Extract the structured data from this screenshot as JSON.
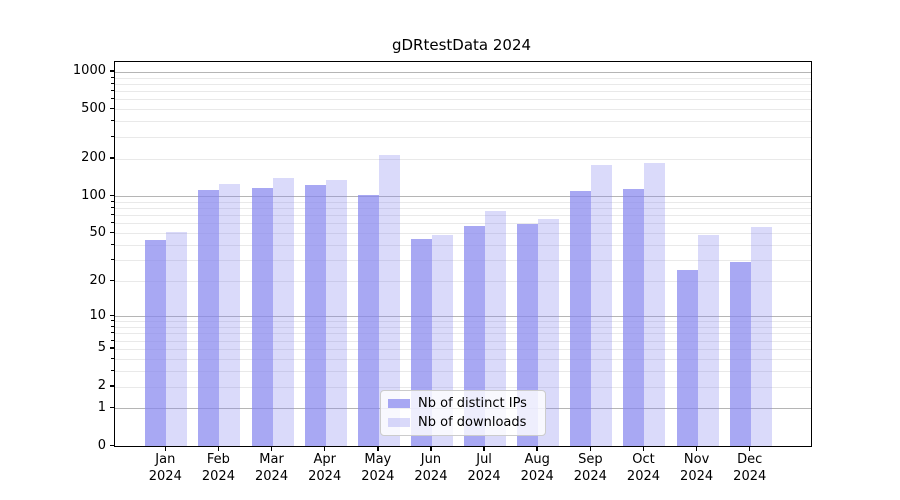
{
  "chart_data": {
    "type": "bar",
    "title": "gDRtestData 2024",
    "categories": [
      "Jan",
      "Feb",
      "Mar",
      "Apr",
      "May",
      "Jun",
      "Jul",
      "Aug",
      "Sep",
      "Oct",
      "Nov",
      "Dec"
    ],
    "x_year": "2024",
    "series": [
      {
        "name": "Nb of distinct IPs",
        "color": "rgba(134,134,238,0.72)",
        "values": [
          44,
          113,
          116,
          122,
          103,
          45,
          57,
          59,
          109,
          115,
          25,
          29
        ]
      },
      {
        "name": "Nb of downloads",
        "color": "rgba(134,134,238,0.30)",
        "values": [
          51,
          126,
          139,
          136,
          215,
          48,
          75,
          65,
          177,
          185,
          48,
          56
        ]
      }
    ],
    "yscale": "log1p",
    "ylim": [
      0,
      1200
    ],
    "yticks": [
      0,
      1,
      2,
      5,
      10,
      20,
      50,
      100,
      200,
      500,
      1000
    ],
    "ytick_labels": [
      "0",
      "1",
      "2",
      "5",
      "10",
      "20",
      "50",
      "100",
      "200",
      "500",
      "1000"
    ],
    "grid": true,
    "grid_major_values": [
      1,
      10,
      100,
      1000
    ],
    "grid_minor_values": [
      2,
      3,
      4,
      5,
      6,
      7,
      8,
      9,
      20,
      30,
      40,
      50,
      60,
      70,
      80,
      90,
      200,
      300,
      400,
      500,
      600,
      700,
      800,
      900
    ],
    "legend_position": "lower center",
    "colors": {
      "major_grid": "#b5b5b5",
      "minor_grid": "#e9e9e9",
      "spine": "#000000",
      "text": "#000000"
    }
  }
}
